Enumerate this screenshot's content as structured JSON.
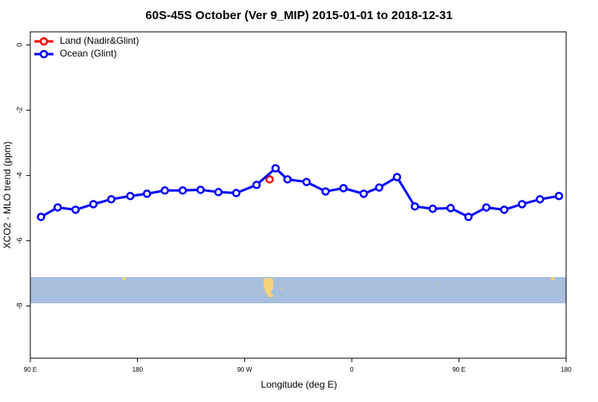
{
  "chart_data": {
    "type": "line",
    "title": "60S-45S October (Ver 9_MIP)   2015-01-01 to 2018-12-31",
    "x_label": "Longitude (deg E)",
    "y_label": "XCO2 - MLO trend (ppm)",
    "xlim": [
      90,
      540
    ],
    "xticks": [
      {
        "value": 90,
        "label": "90 E"
      },
      {
        "value": 180,
        "label": "180"
      },
      {
        "value": 270,
        "label": "90 W"
      },
      {
        "value": 360,
        "label": "0"
      },
      {
        "value": 450,
        "label": "90 E"
      },
      {
        "value": 540,
        "label": "180"
      }
    ],
    "ylim": [
      -9.6,
      0.4
    ],
    "yticks": [
      0,
      -2,
      -4,
      -6,
      -8
    ],
    "legend": "top-left",
    "series": [
      {
        "name": "Land (Nadir&Glint)",
        "color": "#ff0000",
        "x": [
          291
        ],
        "values": [
          -4.12
        ]
      },
      {
        "name": "Ocean (Glint)",
        "color": "#0000ff",
        "x": [
          99,
          113,
          128,
          143,
          158,
          174,
          188,
          203,
          218,
          233,
          248,
          263,
          280,
          296,
          306,
          322,
          338,
          353,
          370,
          383,
          398,
          413,
          428,
          443,
          458,
          473,
          488,
          503,
          518,
          534
        ],
        "values": [
          -5.27,
          -4.98,
          -5.05,
          -4.88,
          -4.73,
          -4.63,
          -4.56,
          -4.46,
          -4.46,
          -4.44,
          -4.51,
          -4.54,
          -4.29,
          -3.78,
          -4.12,
          -4.2,
          -4.49,
          -4.39,
          -4.56,
          -4.37,
          -4.05,
          -4.95,
          -5.02,
          -5.0,
          -5.27,
          -4.98,
          -5.05,
          -4.88,
          -4.73,
          -4.63
        ]
      }
    ]
  }
}
